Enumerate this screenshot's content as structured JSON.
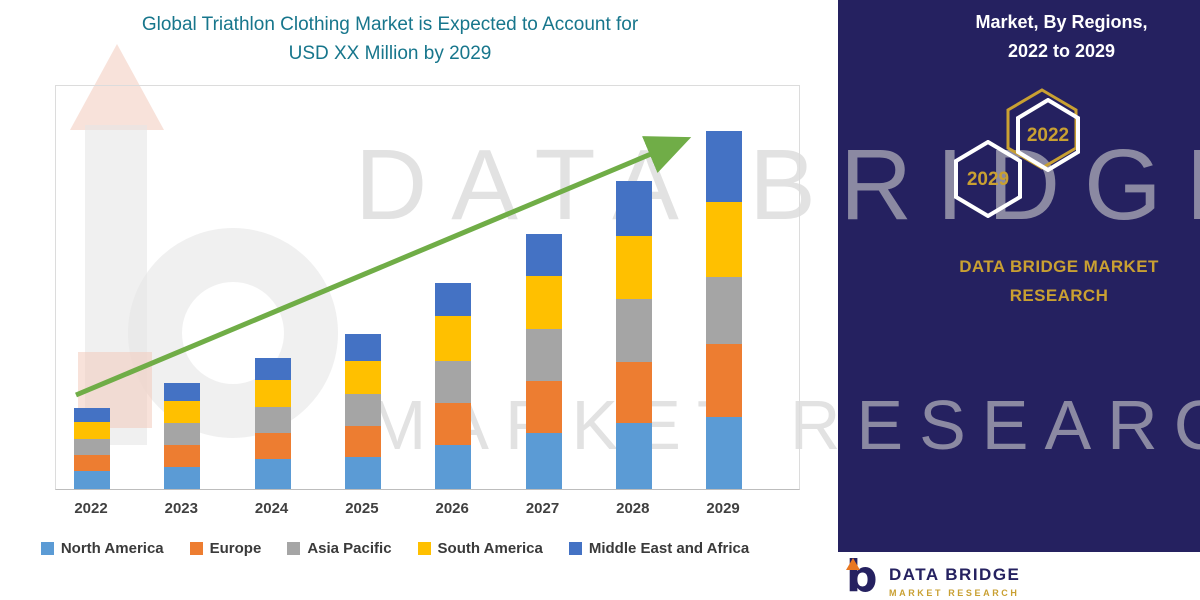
{
  "title": {
    "line1": "Global Triathlon Clothing Market is Expected to Account for",
    "line2": "USD XX Million by 2029"
  },
  "colors": {
    "title_teal": "#17768C",
    "panel_navy": "#252160",
    "brand_gold": "#C9A032",
    "arrow_green": "#70AD47",
    "watermark_gray": "#CFCFCF"
  },
  "chart_data": {
    "type": "bar",
    "stacked": true,
    "title": "Global Triathlon Clothing Market is Expected to Account for USD XX Million by 2029",
    "xlabel": "",
    "ylabel": "",
    "y_axis_visible": false,
    "grid": false,
    "legend_position": "bottom",
    "note": "No numeric y-axis is shown (values are 'USD XX Million'); series values are relative units estimated from bar segment heights",
    "categories": [
      "2022",
      "2023",
      "2024",
      "2025",
      "2026",
      "2027",
      "2028",
      "2029"
    ],
    "series": [
      {
        "name": "North America",
        "color": "#5B9BD5",
        "values": [
          18,
          22,
          30,
          32,
          44,
          56,
          66,
          72
        ]
      },
      {
        "name": "Europe",
        "color": "#ED7D31",
        "values": [
          16,
          22,
          26,
          31,
          42,
          52,
          61,
          73
        ]
      },
      {
        "name": "Asia Pacific",
        "color": "#A5A5A5",
        "values": [
          16,
          22,
          26,
          32,
          42,
          52,
          63,
          67
        ]
      },
      {
        "name": "South America",
        "color": "#FFC000",
        "values": [
          17,
          22,
          27,
          33,
          45,
          53,
          63,
          75
        ]
      },
      {
        "name": "Middle East and Africa",
        "color": "#4472C4",
        "values": [
          14,
          18,
          22,
          27,
          33,
          42,
          55,
          71
        ]
      }
    ],
    "trend_arrow": true,
    "trend_arrow_color": "#70AD47"
  },
  "watermark": {
    "line1": "DATA BRIDGE",
    "line2": "MARKET RESEARCH"
  },
  "side_panel": {
    "heading_line1": "Market,  By Regions,",
    "heading_line2": "2022 to 2029",
    "hexagons": [
      {
        "label": "2029"
      },
      {
        "label": "2022"
      }
    ],
    "brand_line1": "DATA BRIDGE MARKET",
    "brand_line2": "RESEARCH"
  },
  "footer_logo": {
    "name": "DATA BRIDGE",
    "tagline": "MARKET RESEARCH"
  }
}
